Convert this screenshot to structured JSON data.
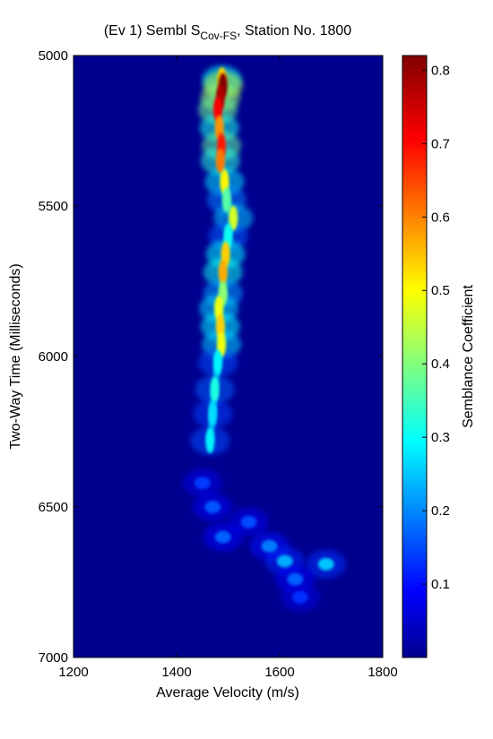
{
  "chart_data": {
    "type": "heatmap",
    "title": {
      "prefix": "(Ev 1) Sembl S",
      "subscript": "Cov-FS",
      "suffix": ", Station No. 1800"
    },
    "xlabel": "Average Velocity (m/s)",
    "ylabel": "Two-Way Time (Milliseconds)",
    "xlim": [
      1200,
      1800
    ],
    "ylim": [
      5000,
      7000
    ],
    "y_reversed": true,
    "xticks": [
      "1200",
      "1400",
      "1600",
      "1800"
    ],
    "yticks": [
      "5000",
      "5500",
      "6000",
      "6500",
      "7000"
    ],
    "colorbar": {
      "label": "Semblance Coefficient",
      "range": [
        0,
        0.82
      ],
      "ticks": [
        "0.1",
        "0.2",
        "0.3",
        "0.4",
        "0.5",
        "0.6",
        "0.7",
        "0.8"
      ],
      "colormap": "jet"
    },
    "background_value": 0.06,
    "semblance_peaks": [
      {
        "time": 5080,
        "velocity": 1488,
        "value": 0.55
      },
      {
        "time": 5100,
        "velocity": 1490,
        "value": 0.82
      },
      {
        "time": 5140,
        "velocity": 1485,
        "value": 0.78
      },
      {
        "time": 5180,
        "velocity": 1480,
        "value": 0.72
      },
      {
        "time": 5240,
        "velocity": 1483,
        "value": 0.6
      },
      {
        "time": 5300,
        "velocity": 1487,
        "value": 0.7
      },
      {
        "time": 5350,
        "velocity": 1485,
        "value": 0.62
      },
      {
        "time": 5420,
        "velocity": 1493,
        "value": 0.52
      },
      {
        "time": 5480,
        "velocity": 1497,
        "value": 0.38
      },
      {
        "time": 5540,
        "velocity": 1510,
        "value": 0.48
      },
      {
        "time": 5600,
        "velocity": 1500,
        "value": 0.32
      },
      {
        "time": 5660,
        "velocity": 1495,
        "value": 0.55
      },
      {
        "time": 5720,
        "velocity": 1490,
        "value": 0.58
      },
      {
        "time": 5790,
        "velocity": 1490,
        "value": 0.42
      },
      {
        "time": 5840,
        "velocity": 1482,
        "value": 0.5
      },
      {
        "time": 5900,
        "velocity": 1485,
        "value": 0.55
      },
      {
        "time": 5960,
        "velocity": 1487,
        "value": 0.5
      },
      {
        "time": 6020,
        "velocity": 1480,
        "value": 0.3
      },
      {
        "time": 6110,
        "velocity": 1474,
        "value": 0.33
      },
      {
        "time": 6190,
        "velocity": 1470,
        "value": 0.28
      },
      {
        "time": 6280,
        "velocity": 1465,
        "value": 0.3
      },
      {
        "time": 6420,
        "velocity": 1450,
        "value": 0.15
      },
      {
        "time": 6500,
        "velocity": 1470,
        "value": 0.17
      },
      {
        "time": 6550,
        "velocity": 1540,
        "value": 0.16
      },
      {
        "time": 6600,
        "velocity": 1490,
        "value": 0.18
      },
      {
        "time": 6630,
        "velocity": 1580,
        "value": 0.2
      },
      {
        "time": 6680,
        "velocity": 1610,
        "value": 0.24
      },
      {
        "time": 6690,
        "velocity": 1690,
        "value": 0.26
      },
      {
        "time": 6740,
        "velocity": 1630,
        "value": 0.18
      },
      {
        "time": 6800,
        "velocity": 1640,
        "value": 0.14
      }
    ]
  }
}
